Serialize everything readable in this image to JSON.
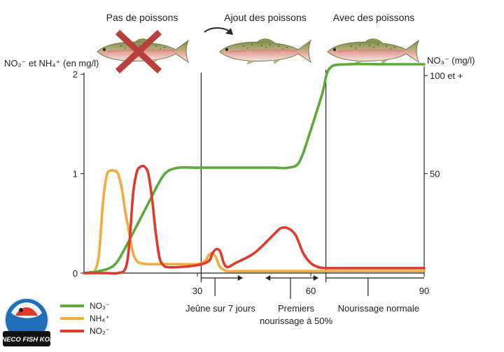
{
  "chart_data": {
    "type": "line",
    "phases": [
      {
        "label": "Pas de poissons",
        "fish_state": "crossed-out"
      },
      {
        "label": "Ajout des poissons",
        "fish_state": "arrow-in"
      },
      {
        "label": "Avec des poissons",
        "fish_state": "present"
      }
    ],
    "ylabel_left": "NO₂⁻ et NH₄⁺ (en mg/l)",
    "ylabel_right": "NO₃⁻ (mg/l)",
    "xlim": [
      0,
      90
    ],
    "ylim_left": [
      0,
      2.1
    ],
    "ylim_right": [
      0,
      105
    ],
    "x_ticks": [
      {
        "value": 30,
        "label": "30"
      },
      {
        "value": 60,
        "label": "60"
      },
      {
        "value": 90,
        "label": "90"
      }
    ],
    "y_ticks_left": [
      {
        "value": 0,
        "label": "0"
      },
      {
        "value": 1,
        "label": "1"
      },
      {
        "value": 2,
        "label": "2"
      }
    ],
    "y_ticks_right": [
      {
        "value": 50,
        "label": "50"
      },
      {
        "value": 100,
        "label": "100 et +"
      }
    ],
    "vertical_lines": [
      31,
      64
    ],
    "series": [
      {
        "name": "NO₃⁻",
        "axis": "right",
        "color": "#5aaa3c",
        "x": [
          0,
          4,
          8,
          11,
          14,
          17,
          20,
          22,
          25,
          30,
          40,
          50,
          54,
          57,
          60,
          63,
          65,
          70,
          80,
          90
        ],
        "y": [
          0,
          1,
          4,
          13,
          24,
          35,
          46,
          51,
          53,
          53,
          53,
          53,
          53,
          56,
          72,
          90,
          103,
          105,
          105,
          105
        ]
      },
      {
        "name": "NH₄⁺",
        "axis": "left",
        "color": "#f2ac3b",
        "x": [
          0,
          2,
          3,
          4,
          5,
          6,
          7,
          8,
          9,
          10,
          11,
          12,
          13,
          14,
          15,
          17,
          20,
          25,
          30,
          32,
          33,
          34,
          35,
          36,
          38,
          40,
          45,
          50,
          60,
          70,
          90
        ],
        "y": [
          0,
          0.01,
          0.03,
          0.2,
          0.7,
          0.98,
          1.03,
          1.03,
          1.0,
          0.85,
          0.6,
          0.4,
          0.2,
          0.12,
          0.1,
          0.09,
          0.09,
          0.09,
          0.09,
          0.12,
          0.18,
          0.2,
          0.15,
          0.06,
          0.02,
          0.02,
          0.02,
          0.02,
          0.02,
          0.02,
          0.02
        ]
      },
      {
        "name": "NO₂⁻",
        "axis": "left",
        "color": "#e03a2c",
        "x": [
          0,
          6,
          9,
          11,
          12,
          13,
          14,
          15,
          16,
          17,
          18,
          19,
          20,
          21,
          22,
          25,
          30,
          33,
          34,
          35,
          36,
          37,
          38,
          40,
          45,
          50,
          52,
          54,
          56,
          58,
          60,
          62,
          64,
          68,
          75,
          90
        ],
        "y": [
          0,
          0,
          0,
          0.05,
          0.3,
          0.8,
          1.02,
          1.07,
          1.07,
          1.0,
          0.75,
          0.4,
          0.15,
          0.08,
          0.06,
          0.06,
          0.08,
          0.12,
          0.2,
          0.24,
          0.22,
          0.1,
          0.06,
          0.1,
          0.2,
          0.38,
          0.45,
          0.45,
          0.38,
          0.2,
          0.1,
          0.06,
          0.05,
          0.05,
          0.05,
          0.05
        ]
      }
    ],
    "annotations": [
      {
        "label": "Jeûne sur 7 jours",
        "from": 31,
        "to": 42
      },
      {
        "label": "Premiers nourissage à 50%",
        "from": 48,
        "to": 62
      },
      {
        "label": "Nourissage normale",
        "from": 64,
        "to": 90
      }
    ],
    "legend_position": "bottom-left"
  },
  "logo": {
    "text": "NECO FISH KOI"
  }
}
